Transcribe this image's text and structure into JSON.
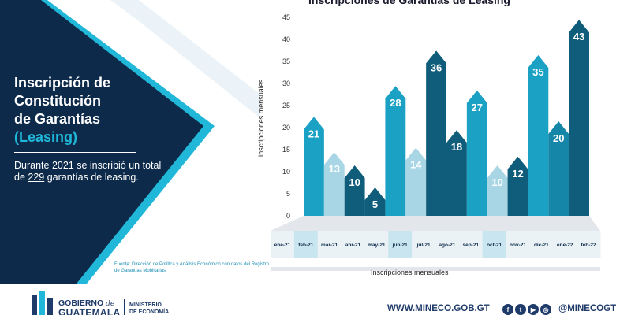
{
  "left": {
    "heading_lines": [
      "Inscripción de",
      "Constitución",
      "de Garantías"
    ],
    "heading_accent": "(Leasing)",
    "summary_before": "Durante 2021 se inscribió un total de ",
    "summary_total": "229",
    "summary_after": " garantías de leasing.",
    "source": "Fuente: Dirección de Política y Análisis Económico con datos del Registro de Garantías Mobiliarias."
  },
  "chart_data": {
    "type": "bar",
    "title": "Inscripciones de Garantías de Leasing",
    "ylabel": "Inscripciones mensuales",
    "xlabel": "Inscripciones mensuales",
    "ylim": [
      0,
      45
    ],
    "yticks": [
      0,
      5,
      10,
      15,
      20,
      25,
      30,
      35,
      40,
      45
    ],
    "categories": [
      "ene-21",
      "feb-21",
      "mar-21",
      "abr-21",
      "may-21",
      "jun-21",
      "jul-21",
      "ago-21",
      "sep-21",
      "oct-21",
      "nov-21",
      "dic-21",
      "ene-22",
      "feb-22"
    ],
    "values": [
      21,
      13,
      10,
      5,
      28,
      14,
      36,
      18,
      27,
      10,
      12,
      35,
      20,
      43
    ],
    "bar_colors": [
      "#1aa1c4",
      "#a9d6e5",
      "#0f5d7a",
      "#0f5d7a",
      "#1aa1c4",
      "#a9d6e5",
      "#0f5d7a",
      "#0f5d7a",
      "#1aa1c4",
      "#a9d6e5",
      "#0f5d7a",
      "#1aa1c4",
      "#1686a8",
      "#0f5d7a"
    ],
    "grid": false
  },
  "footer": {
    "gov_line_1": "GOBIERNO",
    "gov_de": "de",
    "gov_line_2": "GUATEMALA",
    "ministry_1": "MINISTERIO",
    "ministry_2": "DE ECONOMÍA",
    "website": "WWW.MINECO.GOB.GT",
    "social_icons": [
      "facebook-icon",
      "twitter-icon",
      "youtube-icon",
      "instagram-icon"
    ],
    "handle": "@MINECOGT"
  },
  "colors": {
    "navy": "#0d2a4a",
    "accent_cyan": "#21b7d8",
    "footer_text": "#1f3b6a"
  }
}
